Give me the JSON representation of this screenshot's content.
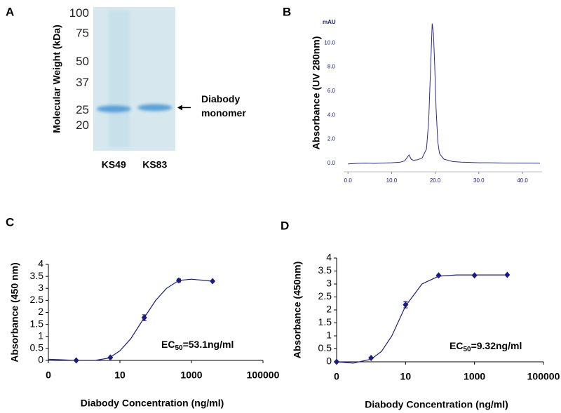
{
  "chart_data": [
    {
      "type": "gel",
      "panel_label": "A",
      "y_label": "Molecular Weight (kDa)",
      "log_scale": true,
      "ylim": [
        14,
        110
      ],
      "yticks": [
        100,
        75,
        50,
        37,
        25,
        20
      ],
      "categories": [
        "KS49",
        "KS83"
      ],
      "values": [
        25.5,
        26
      ],
      "color": "#5aa0d8",
      "annotation": [
        "Diabody",
        "monomer"
      ]
    },
    {
      "type": "line",
      "panel_label": "B",
      "y_label": "Absorbance  (UV 280nm)",
      "y_unit": "mAU",
      "color": "#2a2a9a",
      "xlim": [
        -1,
        44.5
      ],
      "ylim": [
        -0.7,
        12.4
      ],
      "xticks": [
        {
          "value": 0,
          "label": "0.0"
        },
        {
          "value": 10,
          "label": "10.0"
        },
        {
          "value": 20,
          "label": "20.0"
        },
        {
          "value": 30,
          "label": "30.0"
        },
        {
          "value": 40,
          "label": "40.0"
        }
      ],
      "yticks": [
        {
          "value": 0,
          "label": "0.0"
        },
        {
          "value": 2,
          "label": "2.0"
        },
        {
          "value": 4,
          "label": "4.0"
        },
        {
          "value": 6,
          "label": "6.0"
        },
        {
          "value": 8,
          "label": "8.0"
        },
        {
          "value": 10,
          "label": "10.0"
        }
      ],
      "x": [
        0,
        2,
        4,
        6,
        8,
        10,
        12,
        13,
        13.5,
        14,
        14.5,
        15,
        16,
        17,
        18,
        18.5,
        19,
        19.3,
        19.6,
        19.9,
        20.2,
        20.6,
        21,
        22,
        24,
        26,
        28,
        30,
        32,
        34,
        36,
        38,
        40,
        42,
        44
      ],
      "values": [
        -0.05,
        0,
        0.02,
        0,
        0.03,
        0.05,
        0.1,
        0.2,
        0.45,
        0.7,
        0.35,
        0.25,
        0.3,
        0.45,
        1.2,
        3.5,
        8.5,
        11.6,
        10.8,
        8,
        4.5,
        1.8,
        0.8,
        0.35,
        0.15,
        0.1,
        0.08,
        0.05,
        0.05,
        0.04,
        0.03,
        0.03,
        0.02,
        0.02,
        0.01
      ]
    },
    {
      "type": "scatter",
      "panel_label": "C",
      "x_label": "Diabody Concentration (ng/ml)",
      "y_label": "Absorbance (450 nm)",
      "log_x": true,
      "color": "#1c1c80",
      "xlim": [
        0.1,
        100000
      ],
      "ylim": [
        0,
        4
      ],
      "xticks": [
        {
          "value": 0.1,
          "label": "0"
        },
        10,
        1000,
        100000
      ],
      "yticks": [
        0,
        0.5,
        1,
        1.5,
        2,
        2.5,
        3,
        3.5,
        4
      ],
      "x": [
        0.6,
        5.4,
        48,
        444,
        3900
      ],
      "values": [
        0,
        0.12,
        1.78,
        3.33,
        3.3
      ],
      "errors": [
        null,
        null,
        0.12,
        0.06,
        null
      ],
      "curve": {
        "x": [
          0.1,
          0.6,
          2,
          5,
          10,
          20,
          48,
          100,
          200,
          444,
          1000,
          3900
        ],
        "values": [
          0.05,
          0,
          0,
          0.1,
          0.4,
          0.9,
          1.78,
          2.5,
          3.0,
          3.33,
          3.38,
          3.3
        ]
      },
      "annotation": {
        "prefix": "EC",
        "subscript": "50",
        "suffix": "=53.1ng/ml"
      }
    },
    {
      "type": "scatter",
      "panel_label": "D",
      "x_label": "Diabody Concentration (ng/ml)",
      "y_label": "Absorbance (450nm)",
      "log_x": true,
      "color": "#1c1c80",
      "xlim": [
        0.1,
        100000
      ],
      "ylim": [
        0,
        4
      ],
      "xticks": [
        {
          "value": 0.1,
          "label": "0"
        },
        10,
        1000,
        100000
      ],
      "yticks": [
        0,
        0.5,
        1,
        1.5,
        2,
        2.5,
        3,
        3.5,
        4
      ],
      "x": [
        0.1,
        1,
        10,
        91,
        1000,
        8900
      ],
      "values": [
        0,
        0.15,
        2.2,
        3.33,
        3.33,
        3.35
      ],
      "errors": [
        null,
        null,
        0.12,
        null,
        null,
        null
      ],
      "curve": {
        "x": [
          0.1,
          0.3,
          1,
          2,
          4,
          10,
          30,
          91,
          300,
          1000,
          8900
        ],
        "values": [
          0,
          -0.05,
          0.1,
          0.4,
          1.0,
          2.15,
          3.0,
          3.3,
          3.35,
          3.35,
          3.35
        ]
      },
      "annotation": {
        "prefix": "EC",
        "subscript": "50",
        "suffix": "=9.32ng/ml"
      }
    }
  ]
}
